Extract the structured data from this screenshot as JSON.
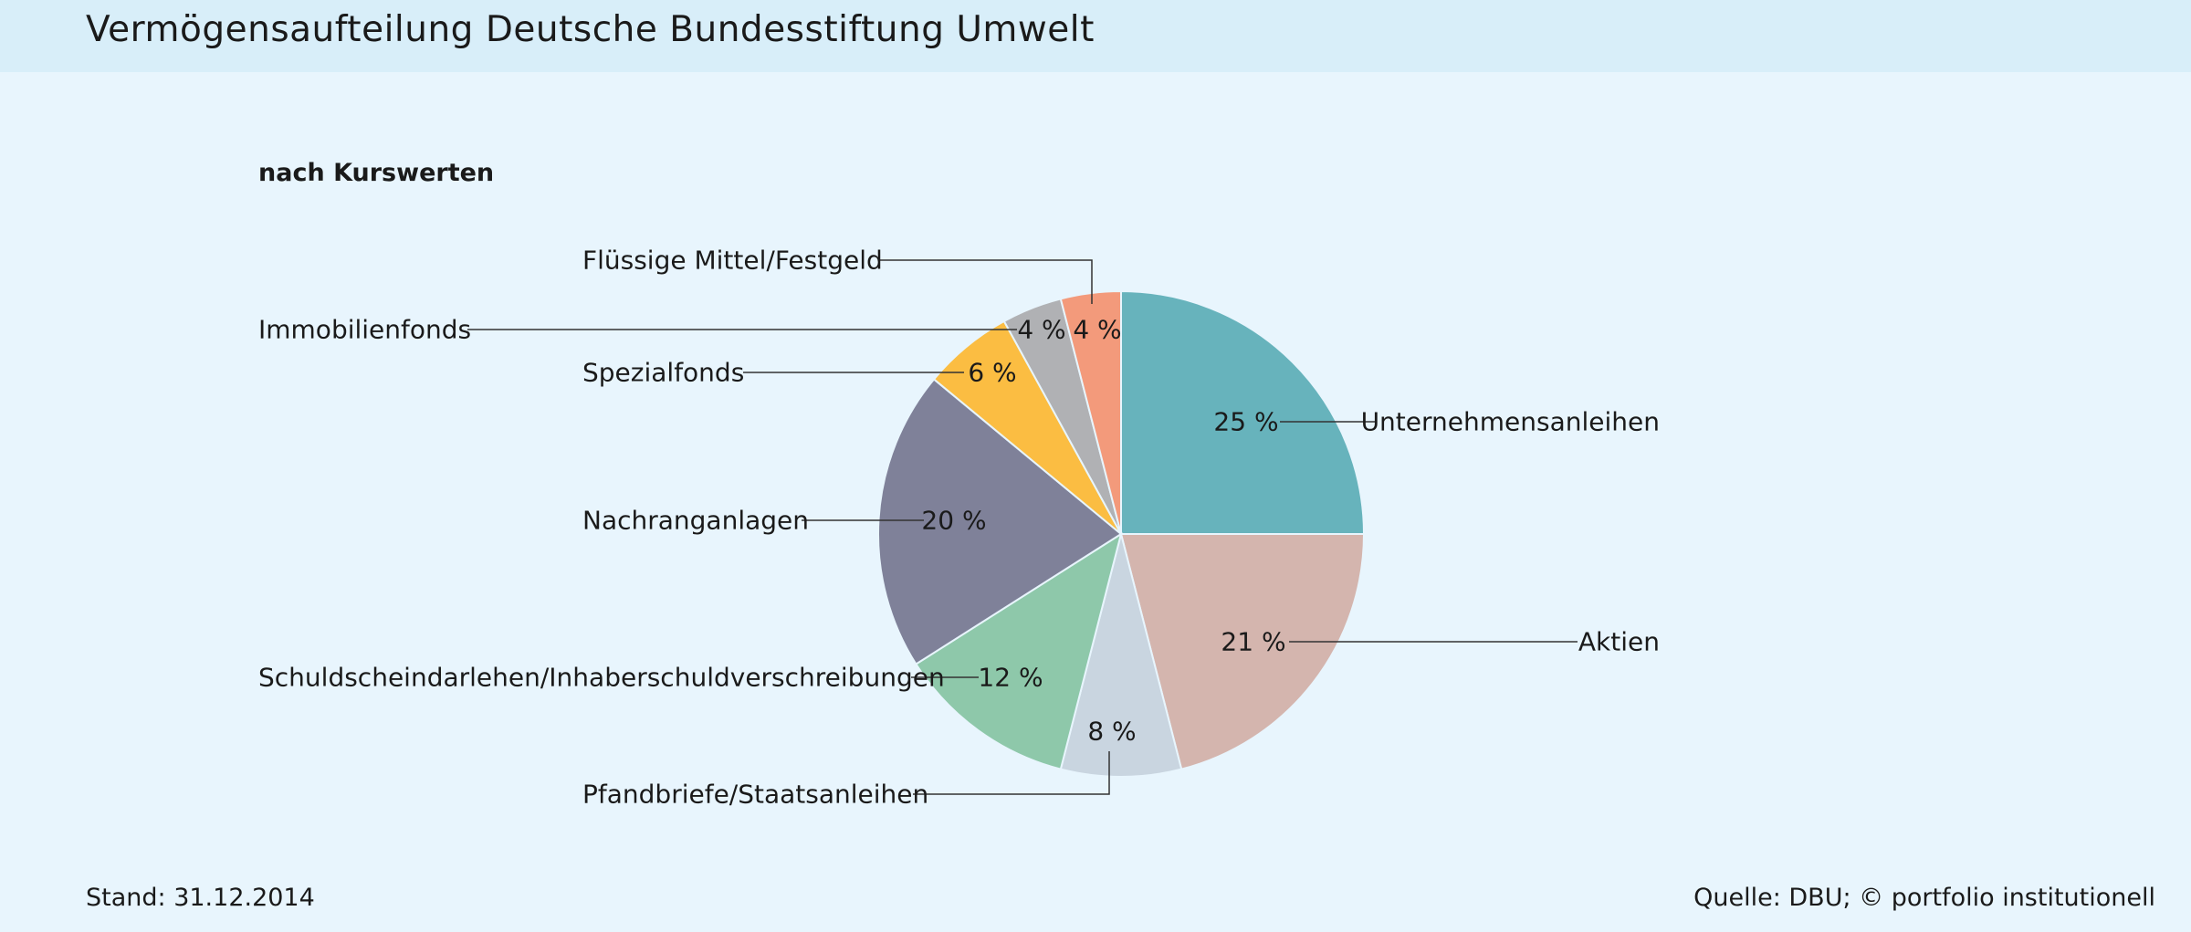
{
  "header": {
    "title": "Vermögensaufteilung Deutsche Bundesstiftung Umwelt"
  },
  "footer": {
    "stand": "Stand: 31.12.2014",
    "source": "Quelle: DBU; © portfolio institutionell"
  },
  "chart_data": {
    "type": "pie",
    "title": "Vermögensaufteilung Deutsche Bundesstiftung Umwelt",
    "subtitle": "nach Kurswerten",
    "unit": "%",
    "slices": [
      {
        "label": "Unternehmensanleihen",
        "value": 25,
        "display": "25 %",
        "color": "#67b3bc"
      },
      {
        "label": "Aktien",
        "value": 21,
        "display": "21 %",
        "color": "#d4b5ae"
      },
      {
        "label": "Pfandbriefe/Staatsanleihen",
        "value": 8,
        "display": "8 %",
        "color": "#c9d5e0"
      },
      {
        "label": "Schuldscheindarlehen/Inhaberschuldverschreibungen",
        "value": 12,
        "display": "12 %",
        "color": "#8ec8aa"
      },
      {
        "label": "Nachranganlagen",
        "value": 20,
        "display": "20 %",
        "color": "#7f8199"
      },
      {
        "label": "Spezialfonds",
        "value": 6,
        "display": "6 %",
        "color": "#fbbd42"
      },
      {
        "label": "Immobilienfonds",
        "value": 4,
        "display": "4 %",
        "color": "#b0b1b4"
      },
      {
        "label": "Flüssige Mittel/Festgeld",
        "value": 4,
        "display": "4 %",
        "color": "#f39a7b"
      }
    ]
  }
}
